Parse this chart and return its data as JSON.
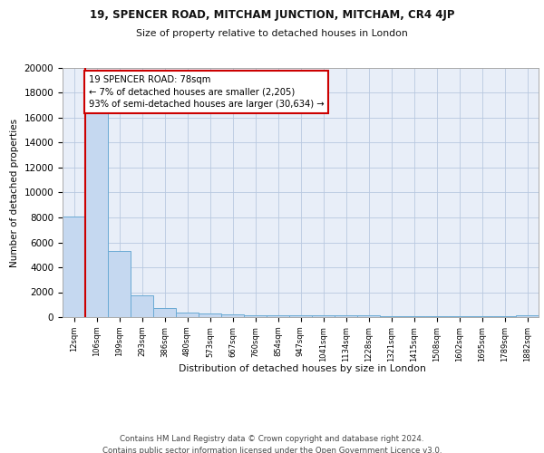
{
  "title1": "19, SPENCER ROAD, MITCHAM JUNCTION, MITCHAM, CR4 4JP",
  "title2": "Size of property relative to detached houses in London",
  "xlabel": "Distribution of detached houses by size in London",
  "ylabel": "Number of detached properties",
  "categories": [
    "12sqm",
    "106sqm",
    "199sqm",
    "293sqm",
    "386sqm",
    "480sqm",
    "573sqm",
    "667sqm",
    "760sqm",
    "854sqm",
    "947sqm",
    "1041sqm",
    "1134sqm",
    "1228sqm",
    "1321sqm",
    "1415sqm",
    "1508sqm",
    "1602sqm",
    "1695sqm",
    "1789sqm",
    "1882sqm"
  ],
  "values": [
    8100,
    16600,
    5300,
    1750,
    700,
    330,
    290,
    220,
    180,
    160,
    150,
    130,
    120,
    110,
    100,
    90,
    85,
    80,
    75,
    70,
    160
  ],
  "bar_color": "#c5d8f0",
  "bar_edge_color": "#6aaad4",
  "annotation_text": "19 SPENCER ROAD: 78sqm\n← 7% of detached houses are smaller (2,205)\n93% of semi-detached houses are larger (30,634) →",
  "annotation_box_color": "#ffffff",
  "annotation_box_edge": "#cc0000",
  "red_line_index": 1,
  "background_color": "#e8eef8",
  "footer": "Contains HM Land Registry data © Crown copyright and database right 2024.\nContains public sector information licensed under the Open Government Licence v3.0.",
  "ylim": [
    0,
    20000
  ],
  "yticks": [
    0,
    2000,
    4000,
    6000,
    8000,
    10000,
    12000,
    14000,
    16000,
    18000,
    20000
  ]
}
